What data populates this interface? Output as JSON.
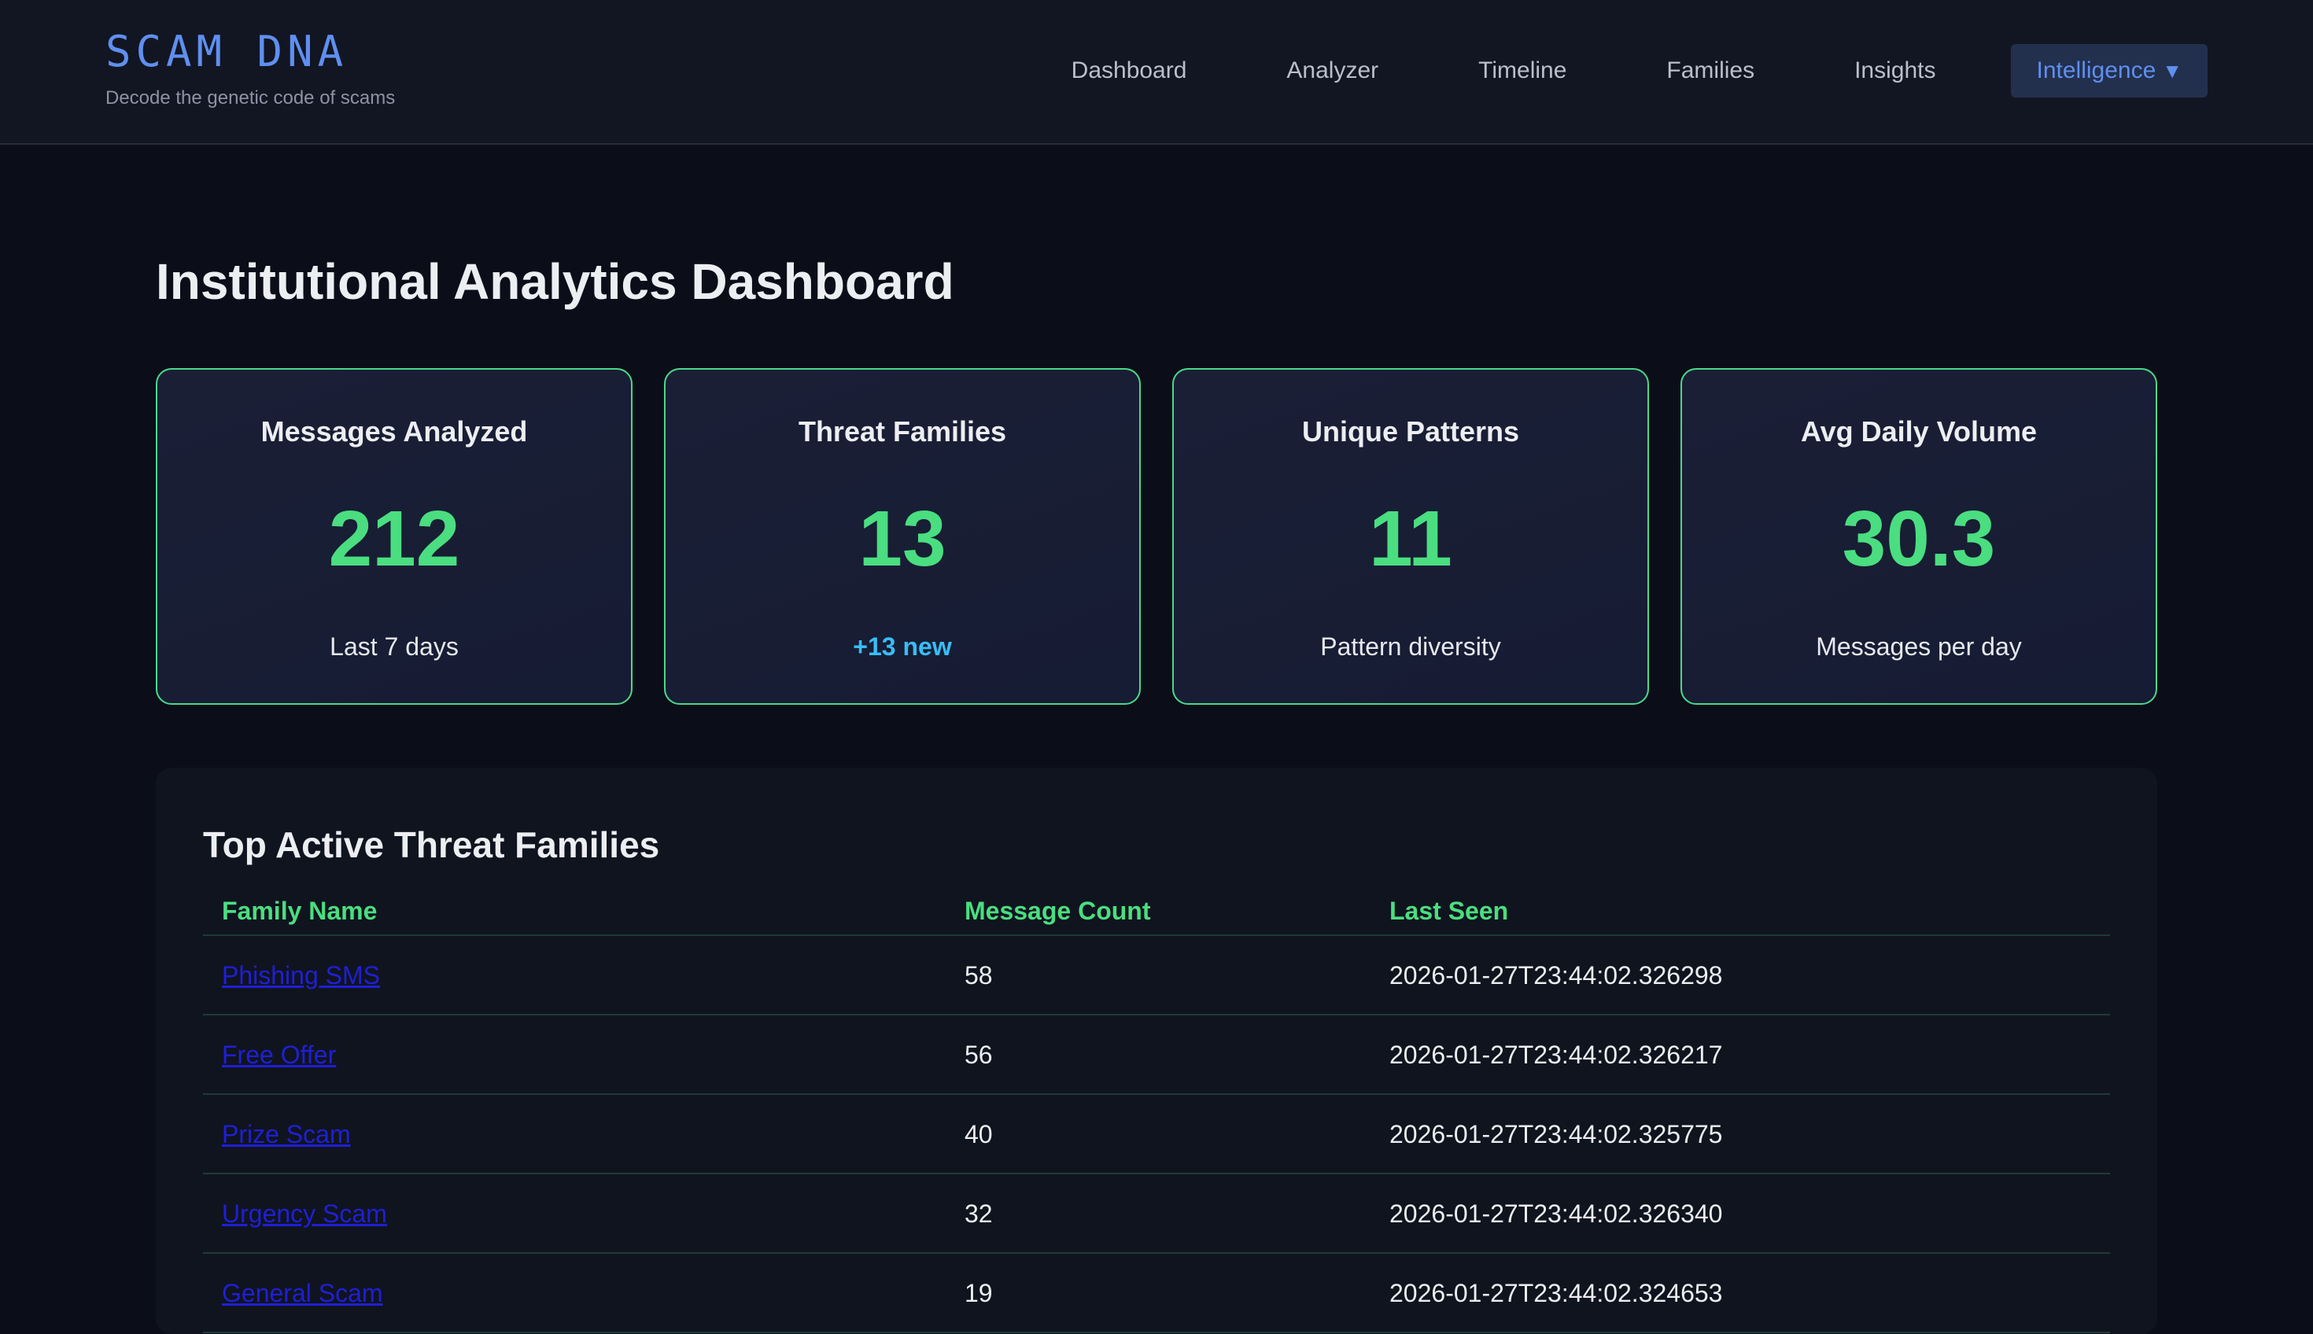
{
  "brand": {
    "title": "SCAM DNA",
    "subtitle": "Decode the genetic code of scams"
  },
  "nav": {
    "items": [
      "Dashboard",
      "Analyzer",
      "Timeline",
      "Families",
      "Insights"
    ],
    "active": "Intelligence",
    "active_caret": "▼"
  },
  "page": {
    "title": "Institutional Analytics Dashboard"
  },
  "cards": [
    {
      "label": "Messages Analyzed",
      "value": "212",
      "note": "Last 7 days"
    },
    {
      "label": "Threat Families",
      "value": "13",
      "note": "+13 new"
    },
    {
      "label": "Unique Patterns",
      "value": "11",
      "note": "Pattern diversity"
    },
    {
      "label": "Avg Daily Volume",
      "value": "30.3",
      "note": "Messages per day"
    }
  ],
  "families_table": {
    "title": "Top Active Threat Families",
    "columns": [
      "Family Name",
      "Message Count",
      "Last Seen"
    ],
    "rows": [
      {
        "name": "Phishing SMS",
        "count": "58",
        "last_seen": "2026-01-27T23:44:02.326298"
      },
      {
        "name": "Free Offer",
        "count": "56",
        "last_seen": "2026-01-27T23:44:02.326217"
      },
      {
        "name": "Prize Scam",
        "count": "40",
        "last_seen": "2026-01-27T23:44:02.325775"
      },
      {
        "name": "Urgency Scam",
        "count": "32",
        "last_seen": "2026-01-27T23:44:02.326340"
      },
      {
        "name": "General Scam",
        "count": "19",
        "last_seen": "2026-01-27T23:44:02.324653"
      }
    ]
  },
  "colors": {
    "accent_green": "#4ade80",
    "accent_blue": "#5f8ff0",
    "accent_cyan": "#38bdf8",
    "link": "#1f1fd6"
  }
}
